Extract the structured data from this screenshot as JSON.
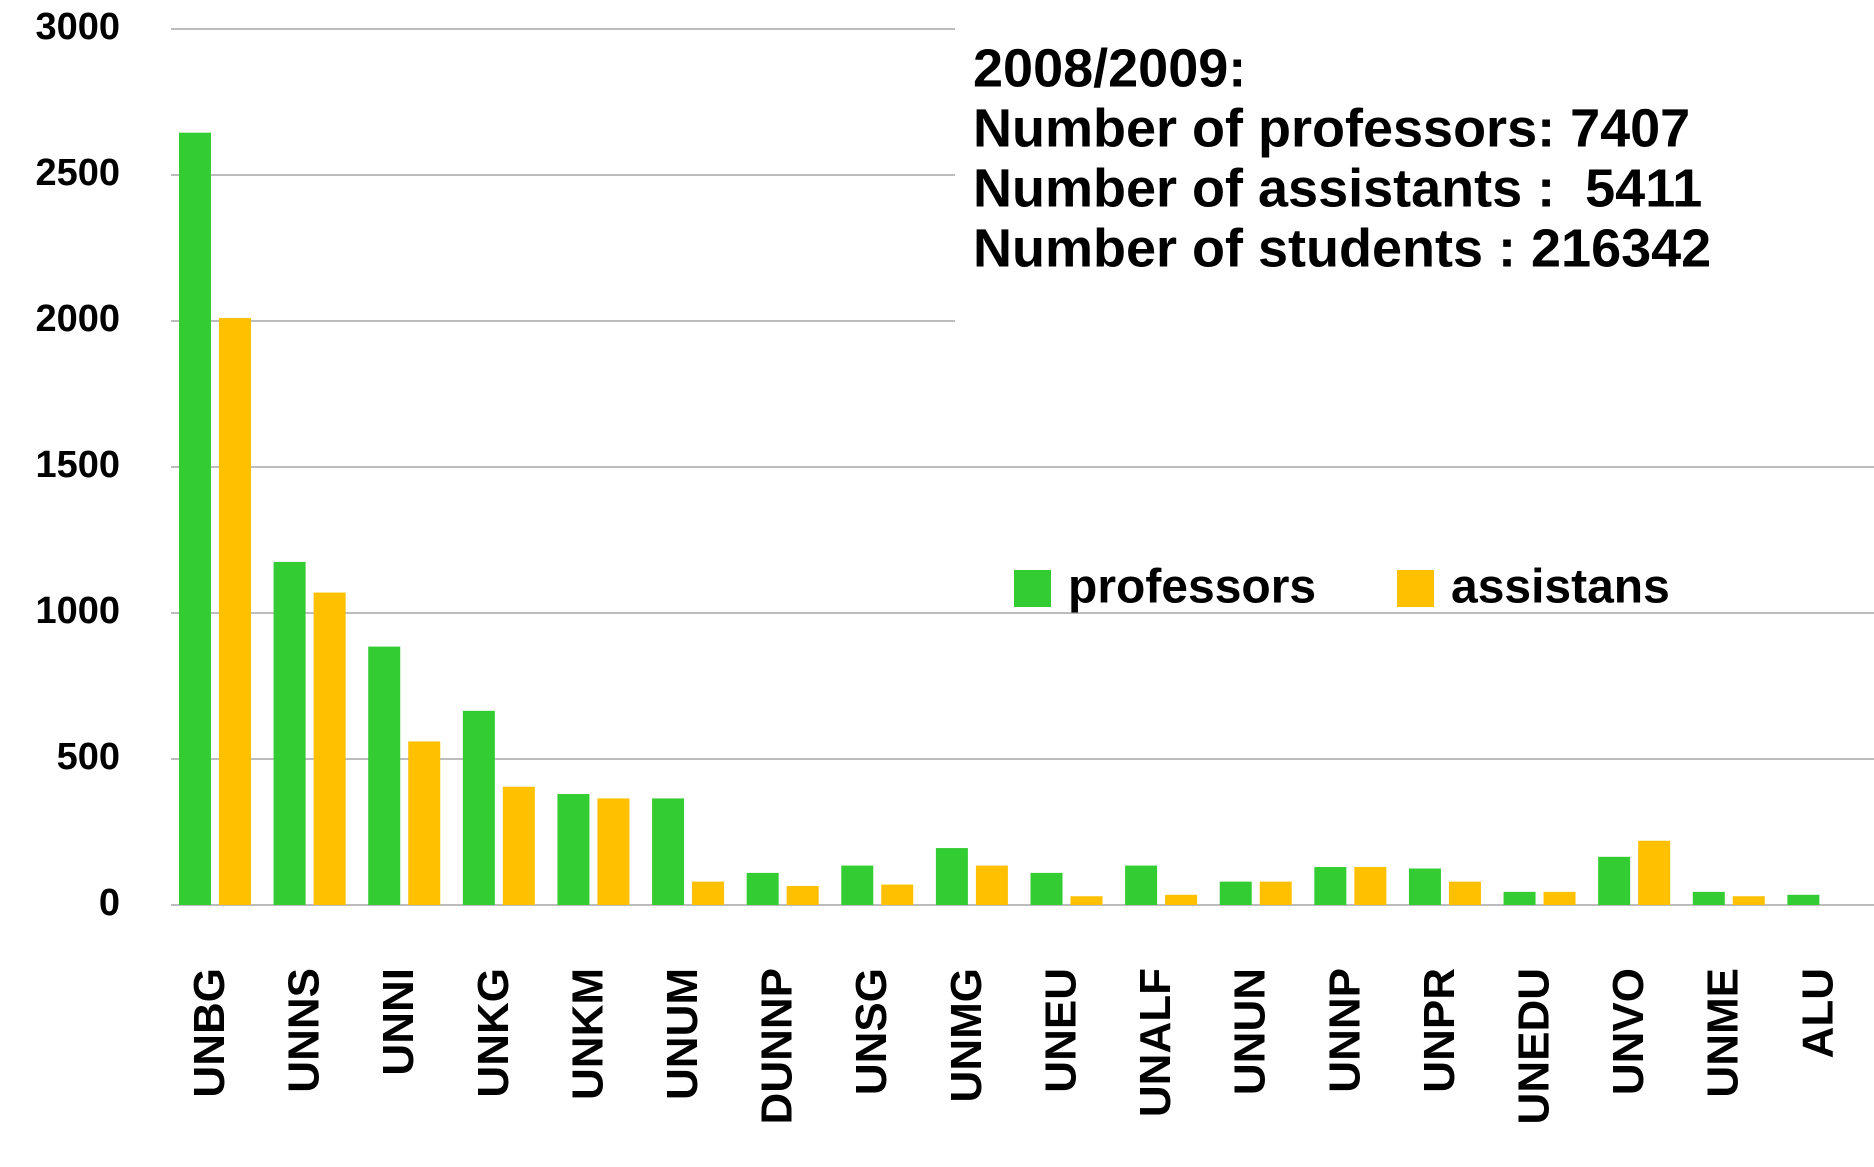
{
  "chart_data": {
    "type": "bar",
    "categories": [
      "UNBG",
      "UNNS",
      "UNNI",
      "UNKG",
      "UNKM",
      "UNUM",
      "DUNNP",
      "UNSG",
      "UNMG",
      "UNEU",
      "UNALF",
      "UNUN",
      "UNNP",
      "UNPR",
      "UNEDU",
      "UNVO",
      "UNME",
      "ALU"
    ],
    "series": [
      {
        "name": "professors",
        "color": "#33cc33",
        "values": [
          2645,
          1175,
          885,
          665,
          380,
          365,
          110,
          135,
          195,
          110,
          135,
          80,
          130,
          125,
          45,
          165,
          45,
          35
        ]
      },
      {
        "name": "assistans",
        "color": "#ffc000",
        "values": [
          2010,
          1070,
          560,
          405,
          365,
          80,
          65,
          70,
          135,
          30,
          35,
          80,
          130,
          80,
          45,
          220,
          30,
          null
        ]
      }
    ],
    "annotations": [
      "2008/2009:",
      "Number of professors: 7407",
      "Number of assistants :  5411",
      "Number of students : 216342"
    ],
    "ylim": [
      0,
      3000
    ],
    "yticks": [
      0,
      500,
      1000,
      1500,
      2000,
      2500,
      3000
    ],
    "grid": true
  }
}
